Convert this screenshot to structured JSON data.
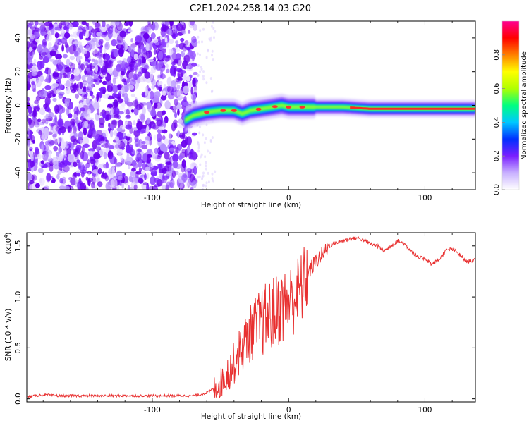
{
  "figure_title": "C2E1.2024.258.14.03.G20",
  "chart_data": [
    {
      "type": "heatmap",
      "xlabel": "Height of straight line (km)",
      "ylabel": "Frequency (Hz)",
      "xlim": [
        -192,
        137
      ],
      "ylim": [
        -50,
        50
      ],
      "xticks": [
        -100,
        0,
        100
      ],
      "xtick_labels": [
        "-100",
        "0",
        "100"
      ],
      "yticks": [
        -40,
        -20,
        0,
        20,
        40
      ],
      "ytick_labels": [
        "-40",
        "-20",
        "0",
        "20",
        "40"
      ],
      "colorbar": {
        "label": "Normalized spectral amplitude",
        "range": [
          0,
          1
        ],
        "ticks": [
          0.0,
          0.2,
          0.4,
          0.6,
          0.8
        ],
        "tick_labels": [
          "0.0",
          "0.2",
          "0.4",
          "0.6",
          "0.8"
        ],
        "colors": [
          "#ffffff",
          "#c8b0ff",
          "#7a1fff",
          "#0030ff",
          "#00c8ff",
          "#00ff80",
          "#b0ff00",
          "#ffff00",
          "#ff8000",
          "#ff0000",
          "#ff0090"
        ]
      },
      "ridge": {
        "x": [
          -76,
          -70,
          -60,
          -50,
          -40,
          -34,
          -28,
          -20,
          -12,
          -5,
          0,
          10,
          20,
          40,
          60,
          80,
          90,
          110,
          137
        ],
        "freq": [
          -9,
          -6,
          -4,
          -3,
          -3,
          -5,
          -3,
          -2,
          -1,
          0,
          -1,
          -1,
          -1,
          -1,
          -2,
          -2,
          -2,
          -2,
          -2
        ]
      },
      "noise_region_x": [
        -192,
        -68
      ]
    },
    {
      "type": "line",
      "xlabel": "Height of straight line (km)",
      "ylabel": "SNR (10 * v/v)",
      "y_multiplier_base": "(x10",
      "y_multiplier_exp": "4",
      "y_multiplier_close": ")",
      "xlim": [
        -192,
        137
      ],
      "ylim": [
        -0.03,
        1.63
      ],
      "xticks": [
        -100,
        0,
        100
      ],
      "xtick_labels": [
        "-100",
        "0",
        "100"
      ],
      "yticks": [
        0.0,
        0.5,
        1.0,
        1.5
      ],
      "ytick_labels": [
        "0.0",
        "0.5",
        "1.0",
        "1.5"
      ],
      "series": [
        {
          "color": "#e83030",
          "x": [
            -192,
            -180,
            -170,
            -160,
            -150,
            -140,
            -130,
            -120,
            -110,
            -100,
            -90,
            -80,
            -70,
            -65,
            -60,
            -55,
            -50,
            -45,
            -40,
            -35,
            -30,
            -25,
            -20,
            -15,
            -10,
            -5,
            0,
            5,
            10,
            15,
            20,
            25,
            30,
            35,
            40,
            45,
            50,
            55,
            60,
            65,
            70,
            75,
            80,
            85,
            90,
            95,
            100,
            105,
            110,
            115,
            120,
            125,
            130,
            137
          ],
          "y": [
            0.02,
            0.04,
            0.03,
            0.03,
            0.03,
            0.03,
            0.03,
            0.03,
            0.03,
            0.03,
            0.03,
            0.03,
            0.03,
            0.04,
            0.06,
            0.1,
            0.15,
            0.25,
            0.35,
            0.48,
            0.6,
            0.7,
            0.75,
            0.8,
            0.85,
            0.9,
            0.95,
            1.0,
            1.1,
            1.25,
            1.35,
            1.42,
            1.5,
            1.53,
            1.55,
            1.57,
            1.58,
            1.56,
            1.52,
            1.5,
            1.45,
            1.5,
            1.55,
            1.52,
            1.45,
            1.38,
            1.38,
            1.32,
            1.36,
            1.45,
            1.47,
            1.42,
            1.35,
            1.36
          ]
        }
      ]
    }
  ]
}
